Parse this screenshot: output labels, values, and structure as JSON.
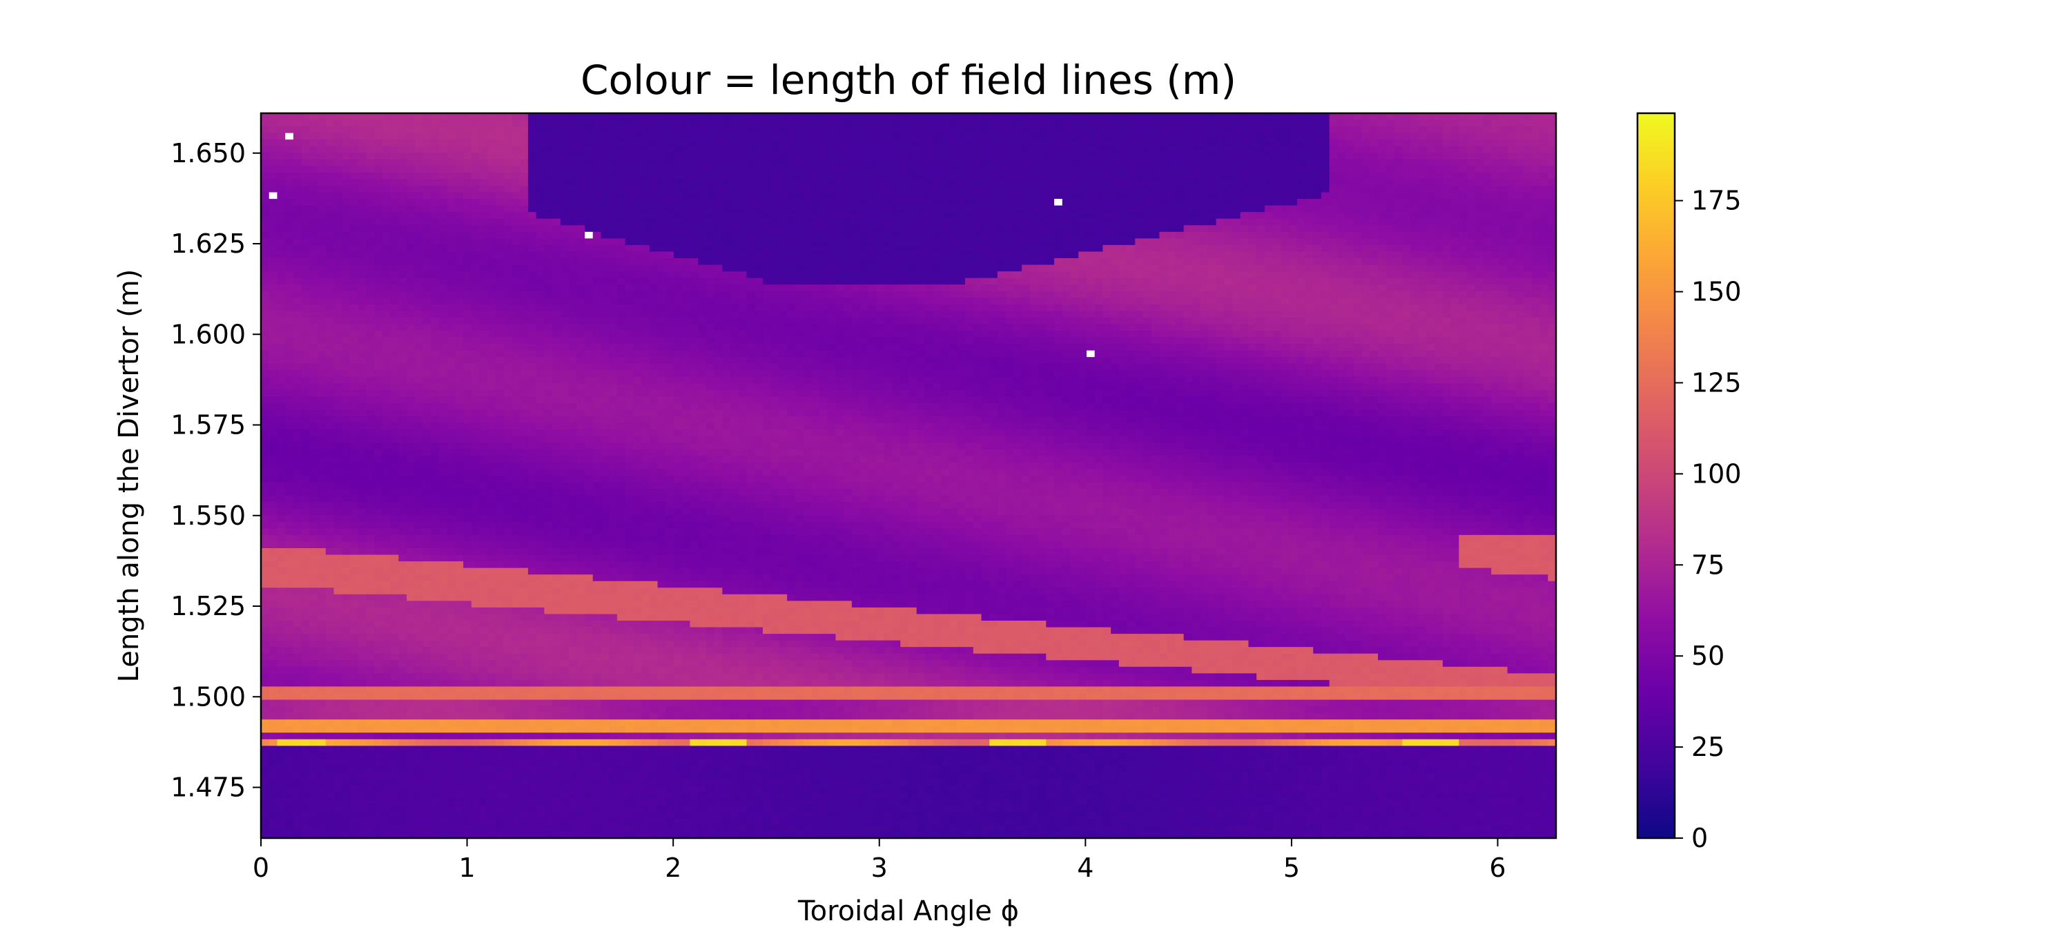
{
  "chart_data": {
    "type": "heatmap",
    "title": "Colour = length of field lines (m)",
    "xlabel": "Toroidal Angle ϕ",
    "ylabel": "Length along the Divertor (m)",
    "xlim": [
      0,
      6.283
    ],
    "ylim": [
      1.461,
      1.661
    ],
    "x_ticks": [
      0,
      1,
      2,
      3,
      4,
      5,
      6
    ],
    "x_tick_labels": [
      "0",
      "1",
      "2",
      "3",
      "4",
      "5",
      "6"
    ],
    "y_ticks": [
      1.475,
      1.5,
      1.525,
      1.55,
      1.575,
      1.6,
      1.625,
      1.65
    ],
    "y_tick_labels": [
      "1.475",
      "1.500",
      "1.525",
      "1.550",
      "1.575",
      "1.600",
      "1.625",
      "1.650"
    ],
    "colormap": "plasma",
    "color_range": [
      0,
      199
    ],
    "colorbar_ticks": [
      0,
      25,
      50,
      75,
      100,
      125,
      150,
      175
    ],
    "colorbar_tick_labels": [
      "0",
      "25",
      "50",
      "75",
      "100",
      "125",
      "150",
      "175"
    ],
    "grid": false,
    "nx": 160,
    "ny": 110,
    "regions": {
      "bottom_band": {
        "y_top": 1.486,
        "value": 24
      },
      "upper_dark_region": {
        "x_range": [
          1.3,
          5.2
        ],
        "y_bottom_approx": 1.615,
        "value": 22
      },
      "main_stripe": {
        "at_x0": [
          1.531,
          1.542
        ],
        "at_x6": [
          1.498,
          1.506
        ],
        "value": 113
      },
      "right_stripe": {
        "x_range": [
          5.8,
          6.283
        ],
        "y_range": [
          1.534,
          1.544
        ],
        "value": 113
      },
      "hot_spots_y": [
        1.483,
        1.488
      ],
      "hot_spot_value": 185,
      "background_range": [
        38,
        80
      ]
    },
    "missing_cells": [
      {
        "x": 0.15,
        "y": 1.654
      },
      {
        "x": 0.07,
        "y": 1.639
      },
      {
        "x": 1.58,
        "y": 1.628
      },
      {
        "x": 3.86,
        "y": 1.637
      },
      {
        "x": 4.03,
        "y": 1.594
      }
    ]
  }
}
